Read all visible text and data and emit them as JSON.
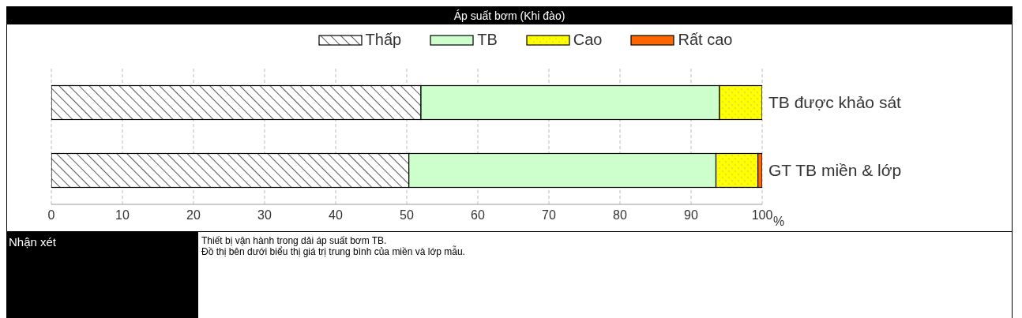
{
  "chart_data": {
    "type": "bar",
    "title": "Áp suất bơm (Khi đào)",
    "orientation": "horizontal",
    "stacked": true,
    "categories": [
      "TB được khảo sát",
      "GT TB miền & lớp"
    ],
    "series": [
      {
        "name": "Thấp",
        "color": "#ffffff",
        "values": [
          52,
          50.3
        ]
      },
      {
        "name": "TB",
        "color": "#ccffcc",
        "values": [
          42,
          43.2
        ]
      },
      {
        "name": "Cao",
        "color": "#ffff00",
        "values": [
          6,
          5.9
        ]
      },
      {
        "name": "Rất cao",
        "color": "#ff6600",
        "values": [
          0,
          0.6
        ]
      }
    ],
    "xlim": [
      0,
      100
    ],
    "xticks": [
      0,
      10,
      20,
      30,
      40,
      50,
      60,
      70,
      80,
      90,
      100
    ],
    "xlabel": "%",
    "grid": "x",
    "legend": "top",
    "annotations": [
      "Nhận xét",
      "Thiết bị vận hành trong dải áp suất bơm TB.",
      "Đồ thị bên dưới biểu thị giá trị trung bình của miền và lớp mẫu."
    ]
  }
}
